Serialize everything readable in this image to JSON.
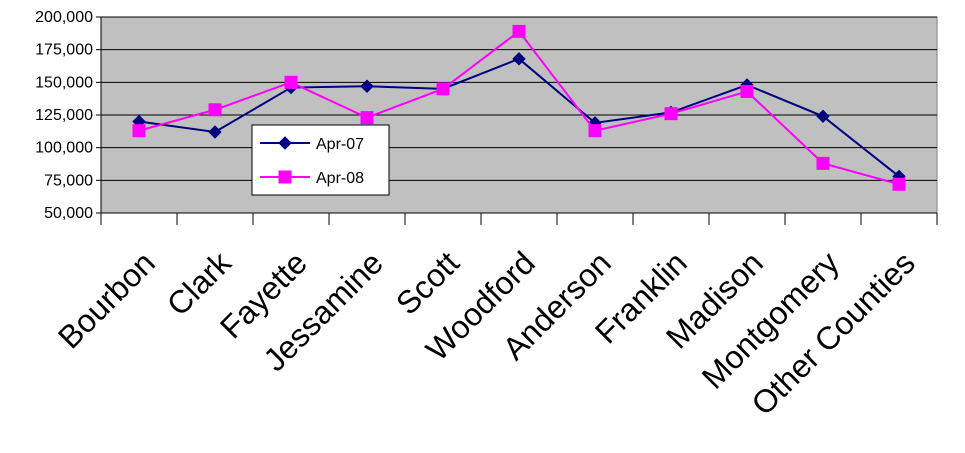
{
  "chart_data": {
    "type": "line",
    "title": "",
    "xlabel": "",
    "ylabel": "",
    "categories": [
      "Bourbon",
      "Clark",
      "Fayette",
      "Jessamine",
      "Scott",
      "Woodford",
      "Anderson",
      "Franklin",
      "Madison",
      "Montgomery",
      "Other Counties"
    ],
    "series": [
      {
        "name": "Apr-07",
        "color": "#000080",
        "marker": "diamond",
        "values": [
          120000,
          112000,
          146000,
          147000,
          145000,
          168000,
          119000,
          127000,
          148000,
          124000,
          78000
        ]
      },
      {
        "name": "Apr-08",
        "color": "#FF00FF",
        "marker": "square",
        "values": [
          113000,
          129000,
          150000,
          123000,
          145000,
          189000,
          113000,
          126000,
          143000,
          88000,
          72000
        ]
      }
    ],
    "ylim": [
      50000,
      200000
    ],
    "yticks": [
      50000,
      75000,
      100000,
      125000,
      150000,
      175000,
      200000
    ],
    "ytick_labels": [
      "50,000",
      "75,000",
      "100,000",
      "125,000",
      "150,000",
      "175,000",
      "200,000"
    ],
    "grid": true,
    "plot_background": "#C0C0C0",
    "legend_position": "inside-left"
  }
}
